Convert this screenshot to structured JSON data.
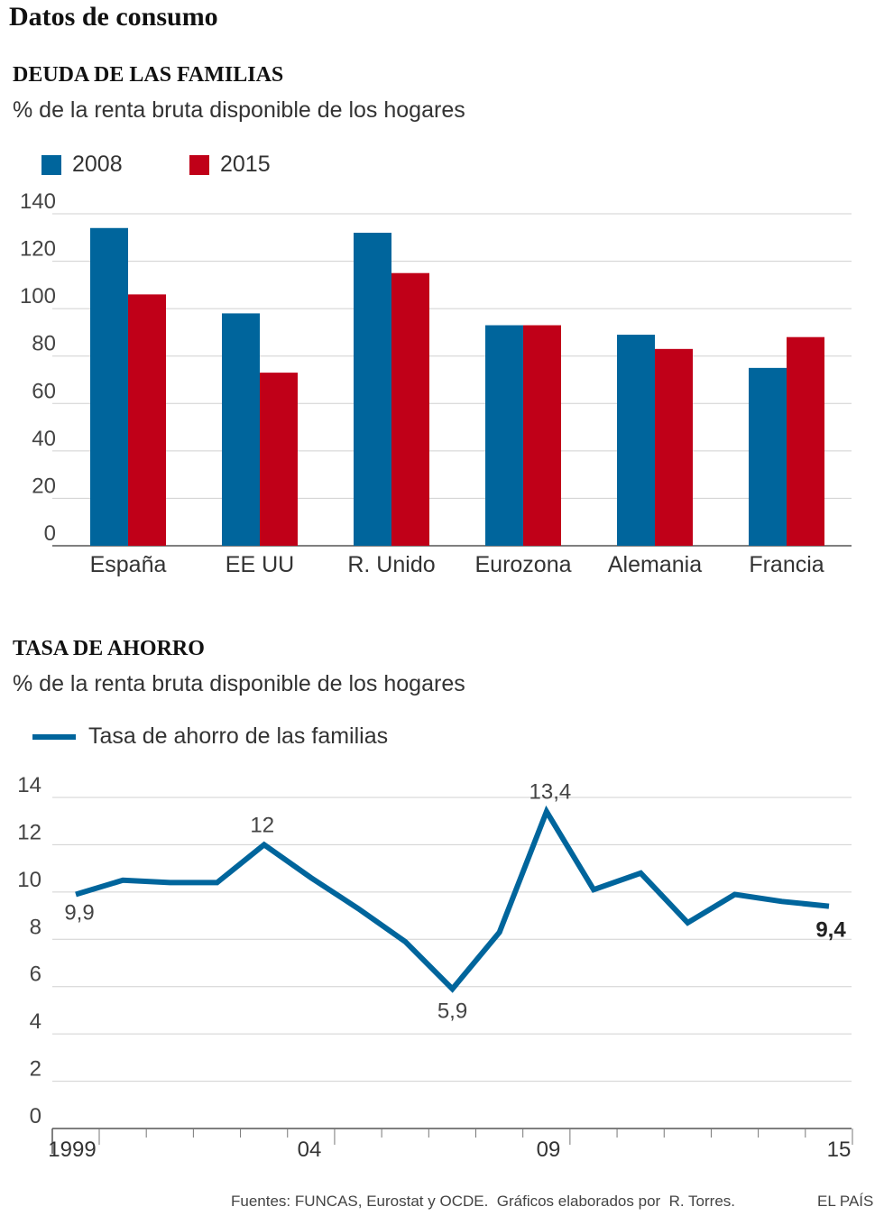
{
  "title": "Datos de consumo",
  "chart_data": [
    {
      "type": "bar",
      "title": "DEUDA DE LAS FAMILIAS",
      "subtitle": "% de la renta bruta disponible de los hogares",
      "categories": [
        "España",
        "EE UU",
        "R. Unido",
        "Eurozona",
        "Alemania",
        "Francia"
      ],
      "series": [
        {
          "name": "2008",
          "color": "#00659c",
          "values": [
            134,
            98,
            132,
            93,
            89,
            75
          ]
        },
        {
          "name": "2015",
          "color": "#c00018",
          "values": [
            106,
            73,
            115,
            93,
            83,
            88
          ]
        }
      ],
      "yticks": [
        "0",
        "20",
        "40",
        "60",
        "80",
        "100",
        "120",
        "140"
      ],
      "ylim": [
        0,
        140
      ],
      "grid": true,
      "legend": "top-left"
    },
    {
      "type": "line",
      "title": "TASA DE AHORRO",
      "subtitle": "% de la renta bruta disponible de los hogares",
      "series": [
        {
          "name": "Tasa de ahorro de las familias",
          "color": "#00659c",
          "x": [
            1999,
            2000,
            2001,
            2002,
            2003,
            2004,
            2005,
            2006,
            2007,
            2008,
            2009,
            2010,
            2011,
            2012,
            2013,
            2014,
            2015
          ],
          "values": [
            9.9,
            10.5,
            10.4,
            10.4,
            12.0,
            10.6,
            9.3,
            7.9,
            5.9,
            8.3,
            13.4,
            10.1,
            10.8,
            8.7,
            9.9,
            9.6,
            9.4
          ]
        }
      ],
      "annotations": [
        {
          "x": 1999,
          "label": "9,9",
          "bold": false
        },
        {
          "x": 2003,
          "label": "12",
          "bold": false
        },
        {
          "x": 2007,
          "label": "5,9",
          "bold": false
        },
        {
          "x": 2009,
          "label": "13,4",
          "bold": false
        },
        {
          "x": 2015,
          "label": "9,4",
          "bold": true
        }
      ],
      "yticks": [
        "0",
        "2",
        "4",
        "6",
        "8",
        "10",
        "12",
        "14"
      ],
      "ylim": [
        0,
        14
      ],
      "xticks": [
        {
          "x": 1999,
          "label": "1999"
        },
        {
          "x": 2004,
          "label": "04"
        },
        {
          "x": 2009,
          "label": "09"
        },
        {
          "x": 2015,
          "label": "15"
        }
      ],
      "grid": true,
      "legend": "top-left"
    }
  ],
  "footer": {
    "sources": "Fuentes: FUNCAS, Eurostat y OCDE.  Gráficos elaborados por  R. Torres.",
    "brand": "EL PAÍS"
  }
}
